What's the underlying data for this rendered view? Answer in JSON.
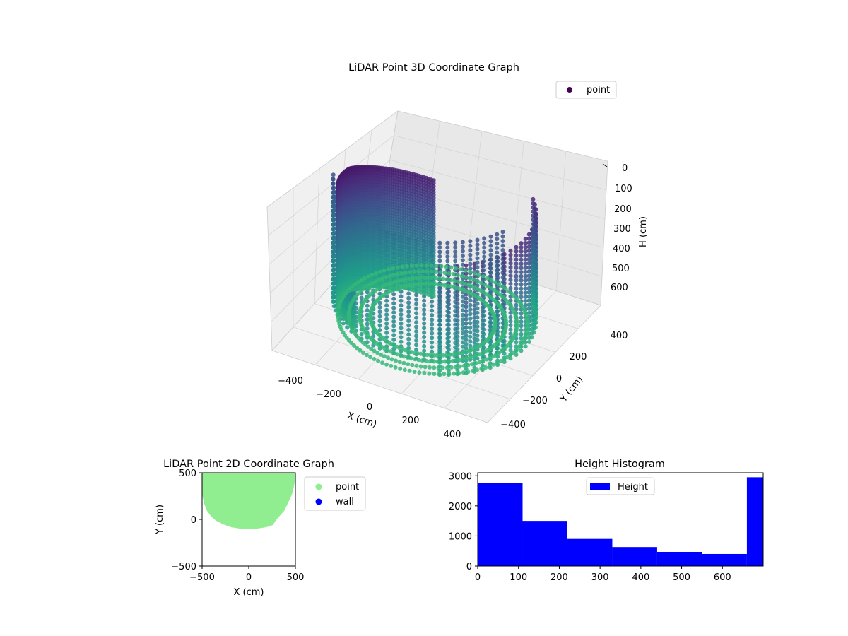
{
  "chart_data": [
    {
      "type": "scatter3d",
      "title": "LiDAR Point 3D Coordinate Graph",
      "xlabel": "X (cm)",
      "ylabel": "Y (cm)",
      "zlabel": "H (cm)",
      "xlim": [
        -500,
        500
      ],
      "ylim": [
        -500,
        500
      ],
      "zlim": [
        0,
        700
      ],
      "z_inverted": true,
      "xticks": [
        "−400",
        "−200",
        "0",
        "200",
        "400"
      ],
      "yticks": [
        "−400",
        "−200",
        "0",
        "200",
        "400"
      ],
      "zticks": [
        "0",
        "100",
        "200",
        "300",
        "400",
        "500",
        "600"
      ],
      "grid": true,
      "legend": {
        "placement": "upper right",
        "entries": [
          {
            "label": "point",
            "color": "#440154"
          }
        ]
      },
      "colormap": "viridis",
      "color_by": "H",
      "description_of_cloud": "cylindrical room wall with vertical scan columns"
    },
    {
      "type": "scatter",
      "title": "LiDAR Point 2D Coordinate Graph",
      "xlabel": "X (cm)",
      "ylabel": "Y (cm)",
      "xlim": [
        -500,
        500
      ],
      "ylim": [
        -500,
        500
      ],
      "xticks": [
        "−500",
        "0",
        "500"
      ],
      "yticks": [
        "−500",
        "0",
        "500"
      ],
      "legend": {
        "placement": "outside right",
        "entries": [
          {
            "label": "point",
            "color": "#90ee90"
          },
          {
            "label": "wall",
            "color": "#0000ff"
          }
        ]
      }
    },
    {
      "type": "bar",
      "title": "Height Histogram",
      "bin_edges": [
        0,
        110,
        220,
        330,
        440,
        550,
        660,
        700
      ],
      "values": [
        2750,
        1500,
        900,
        630,
        470,
        400,
        2950
      ],
      "xlim": [
        0,
        700
      ],
      "ylim": [
        0,
        3100
      ],
      "xticks": [
        "0",
        "100",
        "200",
        "300",
        "400",
        "500",
        "600"
      ],
      "yticks": [
        "0",
        "1000",
        "2000",
        "3000"
      ],
      "color": "#0000ff",
      "legend": {
        "placement": "upper center",
        "entries": [
          {
            "label": "Height",
            "color": "#0000ff"
          }
        ]
      }
    }
  ]
}
